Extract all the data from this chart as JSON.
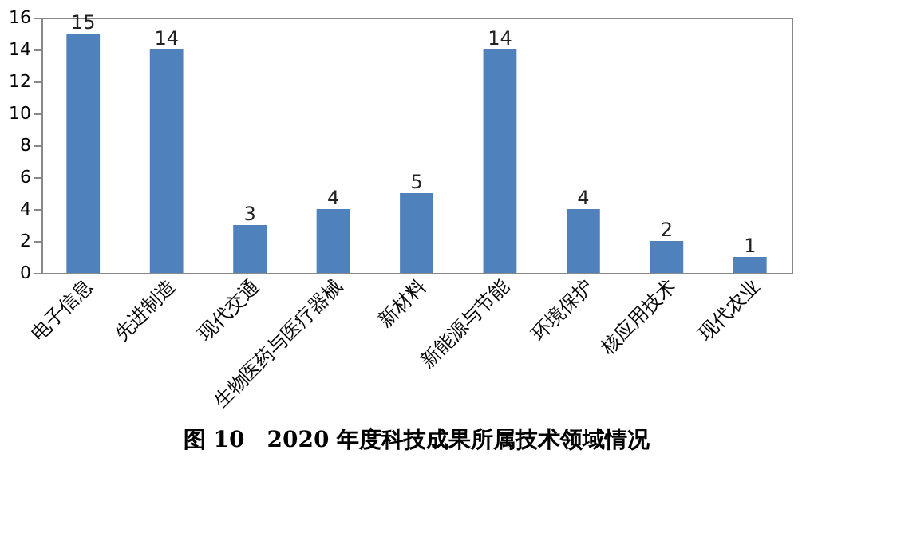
{
  "chart_data": {
    "type": "bar",
    "title": "图 10　2020 年度科技成果所属技术领域情况",
    "categories": [
      "电子信息",
      "先进制造",
      "现代交通",
      "生物医药与医疗器械",
      "新材料",
      "新能源与节能",
      "环境保护",
      "核应用技术",
      "现代农业"
    ],
    "values": [
      15,
      14,
      3,
      4,
      5,
      14,
      4,
      2,
      1
    ],
    "color": "#4f81bd",
    "ylim": [
      0,
      16
    ],
    "yticks": [
      0,
      2,
      4,
      6,
      8,
      10,
      12,
      14,
      16
    ],
    "data_labels": true,
    "grid": false
  }
}
